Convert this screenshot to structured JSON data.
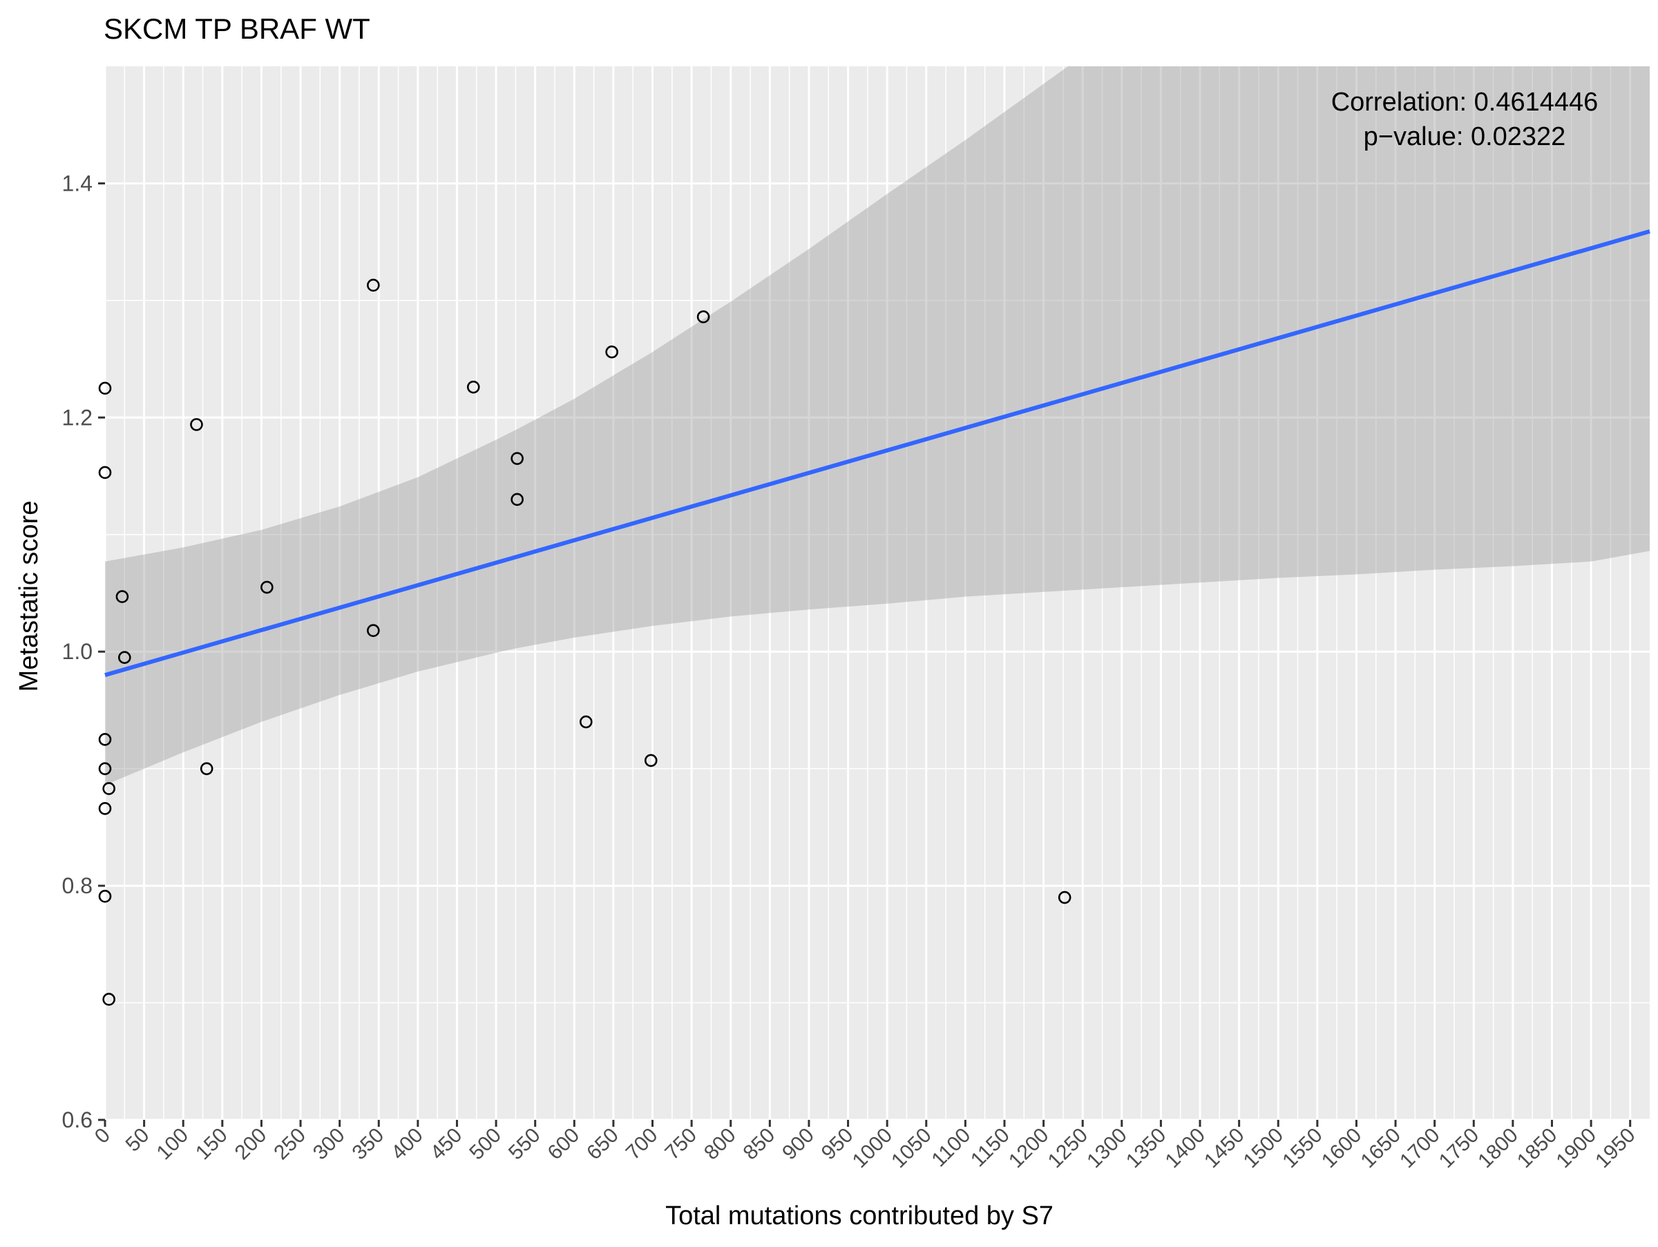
{
  "chart_data": {
    "type": "scatter",
    "title": "SKCM TP BRAF WT",
    "xlabel": "Total mutations contributed by S7",
    "ylabel": "Metastatic score",
    "xlim": [
      0,
      1975
    ],
    "ylim": [
      0.6,
      1.5
    ],
    "x_ticks": [
      "0",
      "50",
      "100",
      "150",
      "200",
      "250",
      "300",
      "350",
      "400",
      "450",
      "500",
      "550",
      "600",
      "650",
      "700",
      "750",
      "800",
      "850",
      "900",
      "950",
      "1000",
      "1050",
      "1100",
      "1150",
      "1200",
      "1250",
      "1300",
      "1350",
      "1400",
      "1450",
      "1500",
      "1550",
      "1600",
      "1650",
      "1700",
      "1750",
      "1800",
      "1850",
      "1900",
      "1950"
    ],
    "y_ticks": [
      "0.6",
      "0.8",
      "1.0",
      "1.2",
      "1.4"
    ],
    "annotation": {
      "correlation": "Correlation: 0.4614446",
      "pvalue": "p−value: 0.02322"
    },
    "grid": true,
    "points": [
      {
        "x": 0,
        "y": 1.225
      },
      {
        "x": 0,
        "y": 1.153
      },
      {
        "x": 0,
        "y": 0.925
      },
      {
        "x": 0,
        "y": 0.9
      },
      {
        "x": 0,
        "y": 0.866
      },
      {
        "x": 0,
        "y": 0.791
      },
      {
        "x": 5,
        "y": 0.883
      },
      {
        "x": 5,
        "y": 0.703
      },
      {
        "x": 22,
        "y": 1.047
      },
      {
        "x": 25,
        "y": 0.995
      },
      {
        "x": 117,
        "y": 1.194
      },
      {
        "x": 130,
        "y": 0.9
      },
      {
        "x": 207,
        "y": 1.055
      },
      {
        "x": 343,
        "y": 1.313
      },
      {
        "x": 343,
        "y": 1.018
      },
      {
        "x": 471,
        "y": 1.226
      },
      {
        "x": 527,
        "y": 1.165
      },
      {
        "x": 527,
        "y": 1.13
      },
      {
        "x": 615,
        "y": 0.94
      },
      {
        "x": 648,
        "y": 1.256
      },
      {
        "x": 698,
        "y": 0.907
      },
      {
        "x": 765,
        "y": 1.286
      },
      {
        "x": 1227,
        "y": 0.79
      }
    ],
    "fit_line": {
      "x": [
        0,
        1975
      ],
      "y": [
        0.98,
        1.359
      ],
      "color": "#3366FF"
    },
    "confidence_band": {
      "x": [
        0,
        100,
        200,
        300,
        400,
        500,
        527,
        600,
        700,
        800,
        900,
        1000,
        1100,
        1200,
        1300,
        1400,
        1500,
        1600,
        1700,
        1800,
        1900,
        1975
      ],
      "upper": [
        1.077,
        1.089,
        1.104,
        1.124,
        1.149,
        1.181,
        1.19,
        1.216,
        1.256,
        1.299,
        1.344,
        1.391,
        1.437,
        1.485,
        1.533,
        1.58,
        1.63,
        1.678,
        1.725,
        1.775,
        1.822,
        1.858
      ],
      "lower": [
        0.886,
        0.914,
        0.94,
        0.963,
        0.983,
        0.999,
        1.003,
        1.012,
        1.022,
        1.03,
        1.036,
        1.041,
        1.047,
        1.051,
        1.055,
        1.059,
        1.063,
        1.066,
        1.07,
        1.073,
        1.077,
        1.086
      ],
      "color": "#999999"
    },
    "colors": {
      "panel": "#EBEBEB",
      "grid_major": "#FFFFFF",
      "point_stroke": "#000000"
    }
  }
}
